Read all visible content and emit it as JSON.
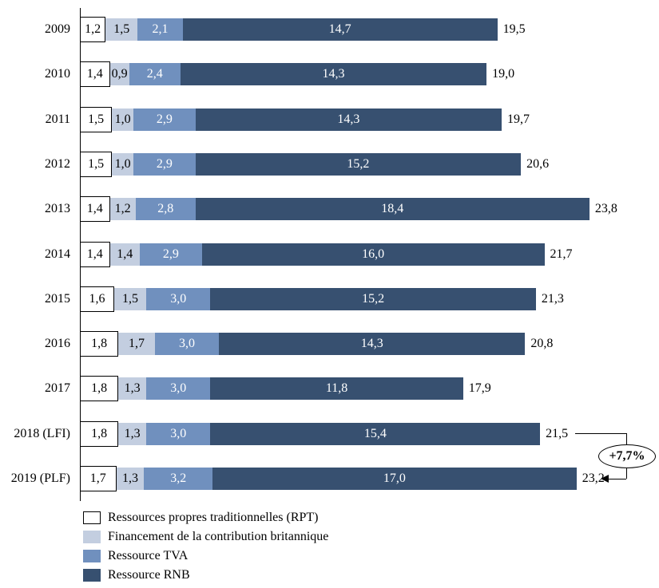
{
  "chart_data": {
    "type": "bar",
    "variant": "horizontal-stacked",
    "title": "",
    "xlabel": "",
    "ylabel": "",
    "xlim": [
      0,
      24.6
    ],
    "grid": false,
    "legend_position": "bottom-left",
    "categories": [
      "2009",
      "2010",
      "2011",
      "2012",
      "2013",
      "2014",
      "2015",
      "2016",
      "2017",
      "2018 (LFI)",
      "2019 (PLF)"
    ],
    "series": [
      {
        "name": "Ressources propres traditionnelles (RPT)",
        "color": "#FFFFFF",
        "border_color": "#000000",
        "label_color": "#000000",
        "values": [
          1.2,
          1.4,
          1.5,
          1.5,
          1.4,
          1.4,
          1.6,
          1.8,
          1.8,
          1.8,
          1.7
        ],
        "labels": [
          "1,2",
          "1,4",
          "1,5",
          "1,5",
          "1,4",
          "1,4",
          "1,6",
          "1,8",
          "1,8",
          "1,8",
          "1,7"
        ]
      },
      {
        "name": "Financement de la contribution britannique",
        "color": "#C3CEE0",
        "label_color": "#000000",
        "values": [
          1.5,
          0.9,
          1.0,
          1.0,
          1.2,
          1.4,
          1.5,
          1.7,
          1.3,
          1.3,
          1.3
        ],
        "labels": [
          "1,5",
          "0,9",
          "1,0",
          "1,0",
          "1,2",
          "1,4",
          "1,5",
          "1,7",
          "1,3",
          "1,3",
          "1,3"
        ]
      },
      {
        "name": "Ressource TVA",
        "color": "#7090BE",
        "label_color": "#FFFFFF",
        "values": [
          2.1,
          2.4,
          2.9,
          2.9,
          2.8,
          2.9,
          3.0,
          3.0,
          3.0,
          3.0,
          3.2
        ],
        "labels": [
          "2,1",
          "2,4",
          "2,9",
          "2,9",
          "2,8",
          "2,9",
          "3,0",
          "3,0",
          "3,0",
          "3,0",
          "3,2"
        ]
      },
      {
        "name": "Ressource RNB",
        "color": "#375070",
        "label_color": "#FFFFFF",
        "values": [
          14.7,
          14.3,
          14.3,
          15.2,
          18.4,
          16.0,
          15.2,
          14.3,
          11.8,
          15.4,
          17.0
        ],
        "labels": [
          "14,7",
          "14,3",
          "14,3",
          "15,2",
          "18,4",
          "16,0",
          "15,2",
          "14,3",
          "11,8",
          "15,4",
          "17,0"
        ]
      }
    ],
    "totals": {
      "values": [
        19.5,
        19.0,
        19.7,
        20.6,
        23.8,
        21.7,
        21.3,
        20.8,
        17.9,
        21.5,
        23.2
      ],
      "labels": [
        "19,5",
        "19,0",
        "19,7",
        "20,6",
        "23,8",
        "21,7",
        "21,3",
        "20,8",
        "17,9",
        "21,5",
        "23,2"
      ]
    },
    "annotation": {
      "text": "+7,7%",
      "from_category": "2018 (LFI)",
      "to_category": "2019 (PLF)"
    },
    "legend": [
      "Ressources propres traditionnelles (RPT)",
      "Financement de la contribution britannique",
      "Ressource TVA",
      "Ressource RNB"
    ]
  }
}
